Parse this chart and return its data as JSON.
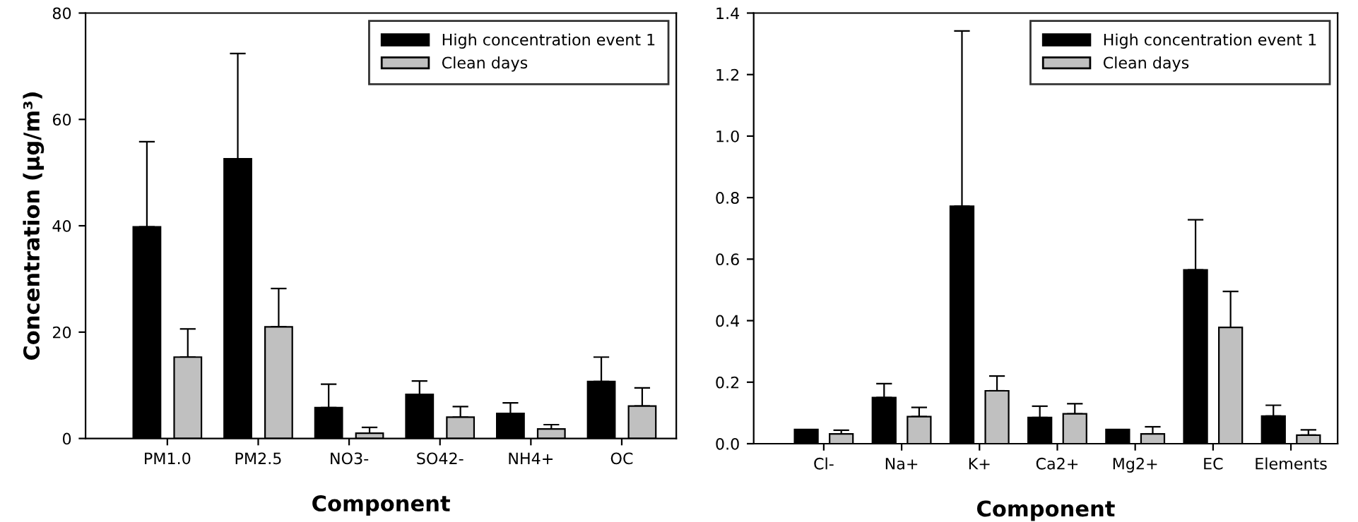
{
  "chart_data": [
    {
      "type": "bar",
      "xlabel": "Component",
      "ylabel": "Concentration (µg/m³)",
      "categories": [
        "PM1.0",
        "PM2.5",
        "NO3-",
        "SO42-",
        "NH4+",
        "OC"
      ],
      "ylim": [
        0,
        80
      ],
      "yticks": [
        0,
        20,
        40,
        60,
        80
      ],
      "legend": "top right",
      "grid": false,
      "series": [
        {
          "name": "High concentration event 1",
          "color": "#000000",
          "values": [
            39.8,
            52.6,
            5.8,
            8.3,
            4.7,
            10.7
          ],
          "errors": [
            [
              39.8,
              55.8
            ],
            [
              52.6,
              72.4
            ],
            [
              5.8,
              10.2
            ],
            [
              8.3,
              10.8
            ],
            [
              4.7,
              6.7
            ],
            [
              10.7,
              15.3
            ]
          ]
        },
        {
          "name": "Clean days",
          "color": "#c0c0c0",
          "values": [
            15.3,
            21.0,
            1.0,
            4.0,
            1.8,
            6.1
          ],
          "errors": [
            [
              15.3,
              20.6
            ],
            [
              21.0,
              28.2
            ],
            [
              1.0,
              2.1
            ],
            [
              4.0,
              6.0
            ],
            [
              1.8,
              2.6
            ],
            [
              6.1,
              9.5
            ]
          ]
        }
      ]
    },
    {
      "type": "bar",
      "xlabel": "Component",
      "categories": [
        "Cl-",
        "Na+",
        "K+",
        "Ca2+",
        "Mg2+",
        "EC",
        "Elements"
      ],
      "ylim": [
        0,
        1.4
      ],
      "yticks": [
        {
          "value": 0,
          "label": "0.0"
        },
        0.2,
        0.4,
        0.6,
        0.8,
        {
          "value": 1,
          "label": "1.0"
        },
        1.2,
        1.4
      ],
      "legend": "top right",
      "grid": false,
      "series": [
        {
          "name": "High concentration event 1",
          "color": "#000000",
          "values": [
            0.046,
            0.15,
            0.772,
            0.085,
            0.046,
            0.565,
            0.09
          ],
          "errors": [
            null,
            [
              0.15,
              0.195
            ],
            [
              0.772,
              1.342
            ],
            [
              0.085,
              0.122
            ],
            null,
            [
              0.565,
              0.728
            ],
            [
              0.09,
              0.125
            ]
          ]
        },
        {
          "name": "Clean days",
          "color": "#c0c0c0",
          "values": [
            0.032,
            0.088,
            0.172,
            0.097,
            0.032,
            0.378,
            0.028
          ],
          "errors": [
            [
              0.032,
              0.044
            ],
            [
              0.088,
              0.118
            ],
            [
              0.172,
              0.22
            ],
            [
              0.097,
              0.13
            ],
            [
              0.032,
              0.055
            ],
            [
              0.378,
              0.495
            ],
            [
              0.028,
              0.045
            ]
          ]
        }
      ]
    }
  ]
}
